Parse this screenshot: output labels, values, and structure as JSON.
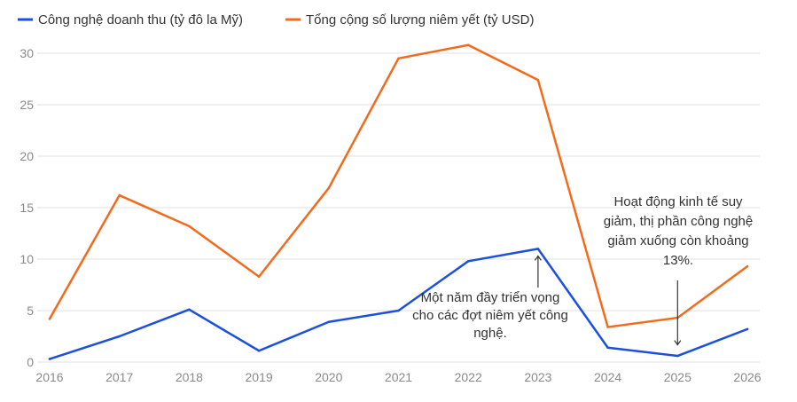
{
  "chart_data": {
    "type": "line",
    "categories": [
      "2016",
      "2017",
      "2018",
      "2019",
      "2020",
      "2021",
      "2022",
      "2023",
      "2024",
      "2025",
      "2026"
    ],
    "series": [
      {
        "name": "Công nghệ doanh thu (tỷ đô la Mỹ)",
        "color": "#1a4fe0",
        "values": [
          0.3,
          2.5,
          5.1,
          1.1,
          3.9,
          5.0,
          9.8,
          11.0,
          1.4,
          0.6,
          3.2
        ]
      },
      {
        "name": "Tổng cộng số lượng niêm yết (tỷ USD)",
        "color": "#f26b1d",
        "values": [
          4.2,
          16.2,
          13.2,
          8.3,
          16.9,
          29.5,
          30.8,
          27.4,
          3.4,
          4.3,
          9.3
        ]
      }
    ],
    "ylim": [
      0,
      30
    ],
    "yticks": [
      "0",
      "5",
      "10",
      "15",
      "20",
      "25",
      "30"
    ],
    "grid": true,
    "legend_position": "top-left",
    "annotations": [
      {
        "lines": [
          "Một năm đầy triển vọng",
          "cho các đợt niêm yết công",
          "nghệ."
        ],
        "category": "2023",
        "arrow_to_value": 11.0,
        "arrow_direction": "up"
      },
      {
        "lines": [
          "Hoạt động kinh tế suy",
          "giảm, thị phần công nghệ",
          "giảm xuống còn khoảng",
          "13%."
        ],
        "category": "2025",
        "arrow_to_value": 1.5,
        "arrow_direction": "down"
      }
    ]
  }
}
